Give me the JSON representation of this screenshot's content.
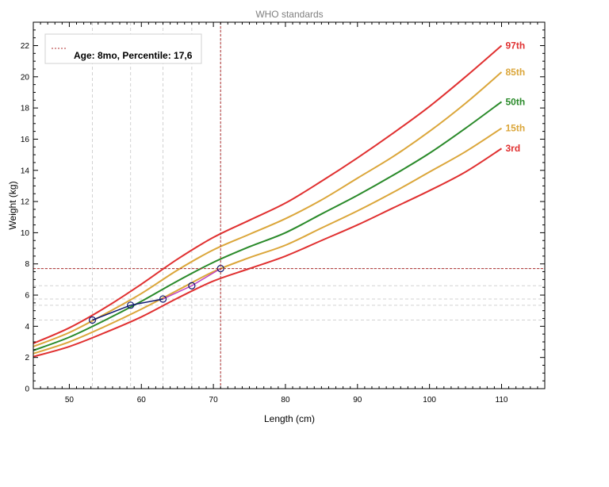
{
  "chart_data": {
    "type": "line",
    "title": "WHO standards",
    "xlabel": "Length (cm)",
    "ylabel": "Weight (kg)",
    "xlim": [
      45,
      116
    ],
    "ylim": [
      0,
      23.5
    ],
    "x_ticks": [
      50,
      60,
      70,
      80,
      90,
      100,
      110
    ],
    "y_ticks": [
      0,
      2,
      4,
      6,
      8,
      10,
      12,
      14,
      16,
      18,
      20,
      22
    ],
    "grid": false,
    "x": [
      45,
      50,
      55,
      60,
      65,
      70,
      75,
      80,
      85,
      90,
      95,
      100,
      105,
      110
    ],
    "series": [
      {
        "name": "97th",
        "color": "#e03030",
        "values": [
          2.9,
          3.9,
          5.2,
          6.7,
          8.3,
          9.7,
          10.8,
          11.9,
          13.3,
          14.8,
          16.4,
          18.1,
          20.0,
          22.0
        ]
      },
      {
        "name": "85th",
        "color": "#dba63a",
        "values": [
          2.7,
          3.6,
          4.8,
          6.1,
          7.6,
          8.9,
          9.9,
          10.9,
          12.1,
          13.5,
          14.9,
          16.5,
          18.3,
          20.3
        ]
      },
      {
        "name": "50th",
        "color": "#2a8a2a",
        "values": [
          2.45,
          3.3,
          4.4,
          5.6,
          6.9,
          8.1,
          9.1,
          10.0,
          11.2,
          12.4,
          13.7,
          15.1,
          16.7,
          18.4
        ]
      },
      {
        "name": "15th",
        "color": "#dba63a",
        "values": [
          2.25,
          3.0,
          4.0,
          5.1,
          6.3,
          7.5,
          8.4,
          9.2,
          10.3,
          11.4,
          12.6,
          13.9,
          15.2,
          16.7
        ]
      },
      {
        "name": "3rd",
        "color": "#e03030",
        "values": [
          2.05,
          2.7,
          3.6,
          4.6,
          5.8,
          6.9,
          7.7,
          8.5,
          9.5,
          10.5,
          11.6,
          12.7,
          13.9,
          15.4
        ]
      }
    ],
    "measurements": {
      "x": [
        53.2,
        58.5,
        63.0,
        67.0,
        71.0
      ],
      "y": [
        4.4,
        5.35,
        5.75,
        6.6,
        7.7
      ],
      "line_color": "#101870",
      "link_color": "#c040c0"
    },
    "crosshair": {
      "x": 71.0,
      "y": 7.7,
      "color": "#b03030"
    },
    "legend": {
      "position": "top-left",
      "label": "Age: 8mo, Percentile: 17,6"
    }
  }
}
